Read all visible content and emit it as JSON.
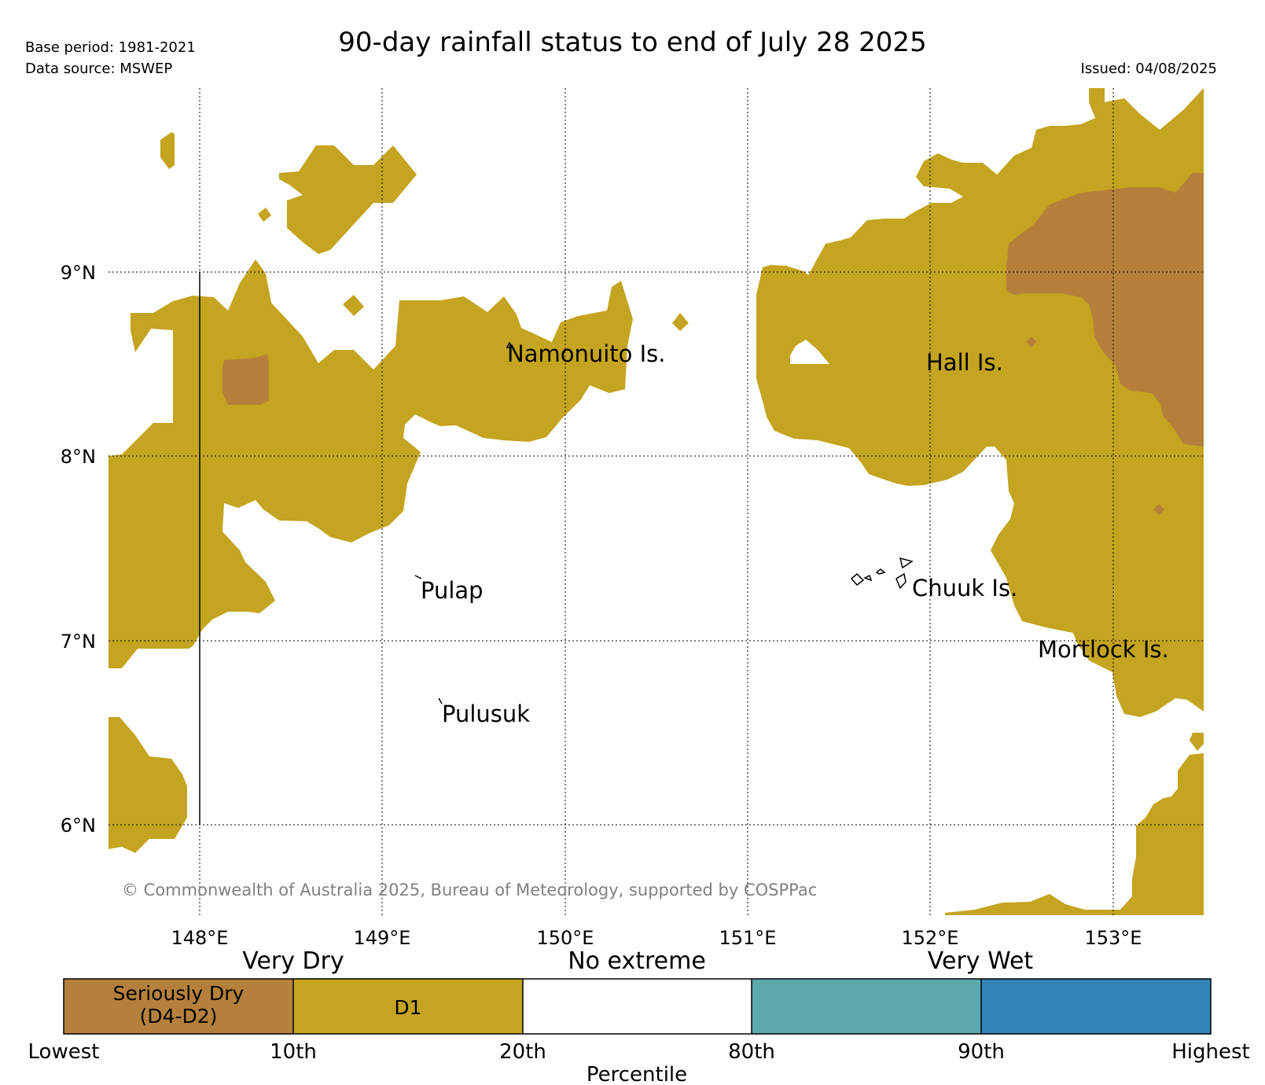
{
  "header": {
    "title": "90-day rainfall status to end of July 28 2025",
    "base_period": "Base period: 1981-2021",
    "data_source": "Data source: MSWEP",
    "issued": "Issued: 04/08/2025"
  },
  "map": {
    "lat_labels": [
      "9°N",
      "8°N",
      "7°N",
      "6°N"
    ],
    "lon_labels": [
      "148°E",
      "149°E",
      "150°E",
      "151°E",
      "152°E",
      "153°E"
    ],
    "places": [
      "Namonuito Is.",
      "Hall Is.",
      "Pulap",
      "Chuuk Is.",
      "Mortlock Is.",
      "Pulusuk"
    ],
    "copyright": "© Commonwealth of Australia 2025, Bureau of Meteorology, supported by COSPPac",
    "colors": {
      "seriously_dry": "#b5803b",
      "d1": "#c4a420",
      "wet_80_90": "#5ca8ac",
      "wet_90_max": "#3484b6"
    }
  },
  "legend": {
    "groups": [
      "Very Dry",
      "No extreme",
      "Very Wet"
    ],
    "boxes": [
      "Seriously Dry",
      "(D4-D2)",
      "D1"
    ],
    "ticks": [
      "Lowest",
      "10th",
      "20th",
      "80th",
      "90th",
      "Highest"
    ],
    "axis_label": "Percentile"
  }
}
